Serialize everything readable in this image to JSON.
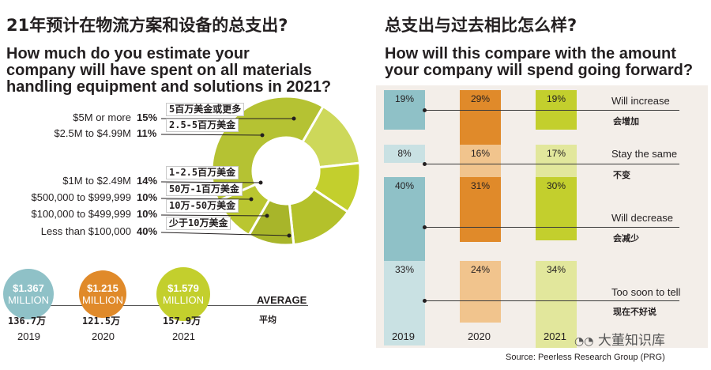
{
  "left": {
    "title_cn": "21年预计在物流方案和设备的总支出?",
    "title_en_1": "How much do you estimate your",
    "title_en_2": "company will have spent on all materials",
    "title_en_3": "handling equipment and solutions in 2021?",
    "legend": [
      {
        "label": "$5M or more",
        "pct": "15%",
        "cn": "5百万美金或更多"
      },
      {
        "label": "$2.5M to $4.99M",
        "pct": "11%",
        "cn": "2.5-5百万美金"
      },
      {
        "label": "$1M to $2.49M",
        "pct": "14%",
        "cn": "1-2.5百万美金"
      },
      {
        "label": "$500,000 to $999,999",
        "pct": "10%",
        "cn": "50万-1百万美金"
      },
      {
        "label": "$100,000 to $499,999",
        "pct": "10%",
        "cn": "10万-50万美金"
      },
      {
        "label": "Less than $100,000",
        "pct": "40%",
        "cn": "少于10万美金"
      }
    ],
    "averages": [
      {
        "value": "$1.367",
        "unit": "MILLION",
        "cn": "136.7万",
        "year": "2019",
        "color": "#8fc1c7"
      },
      {
        "value": "$1.215",
        "unit": "MILLION",
        "cn": "121.5万",
        "year": "2020",
        "color": "#e08a2a"
      },
      {
        "value": "$1.579",
        "unit": "MILLION",
        "cn": "157.9万",
        "year": "2021",
        "color": "#c3cf2d"
      }
    ],
    "average_label": "AVERAGE",
    "average_cn": "平均"
  },
  "right": {
    "title_cn": "总支出与过去相比怎么样?",
    "title_en_1": "How will this compare with the amount",
    "title_en_2": "your company will spend going forward?",
    "years": [
      "2019",
      "2020",
      "2021"
    ],
    "options": [
      {
        "en": "Will increase",
        "cn": "会增加"
      },
      {
        "en": "Stay the same",
        "cn": "不变"
      },
      {
        "en": "Will decrease",
        "cn": "会减少"
      },
      {
        "en": "Too soon to tell",
        "cn": "现在不好说"
      }
    ],
    "source": "Source: Peerless Research Group (PRG)",
    "watermark": "大董知识库"
  },
  "chart_data": [
    {
      "type": "pie",
      "title": "How much do you estimate your company will have spent on all materials handling equipment and solutions in 2021?",
      "categories": [
        "$5M or more",
        "$2.5M to $4.99M",
        "$1M to $2.49M",
        "$500,000 to $999,999",
        "$100,000 to $499,999",
        "Less than $100,000"
      ],
      "values": [
        15,
        11,
        14,
        10,
        10,
        40
      ],
      "colors": [
        "#cdd85a",
        "#c3cf2d",
        "#b4c12b",
        "#a8b52a",
        "#bac630",
        "#b5c233"
      ]
    },
    {
      "type": "bar",
      "title": "Average spend",
      "categories": [
        "2019",
        "2020",
        "2021"
      ],
      "values": [
        1.367,
        1.215,
        1.579
      ],
      "ylabel": "MILLION"
    },
    {
      "type": "bar",
      "title": "How will this compare with the amount your company will spend going forward?",
      "categories": [
        "Will increase",
        "Stay the same",
        "Will decrease",
        "Too soon to tell"
      ],
      "series": [
        {
          "name": "2019",
          "values": [
            19,
            8,
            40,
            33
          ],
          "labels": [
            "19%",
            "8%",
            "40%",
            "33%"
          ]
        },
        {
          "name": "2020",
          "values": [
            29,
            16,
            31,
            24
          ],
          "labels": [
            "29%",
            "16%",
            "31%",
            "24%"
          ]
        },
        {
          "name": "2021",
          "values": [
            19,
            17,
            30,
            34
          ],
          "labels": [
            "19%",
            "17%",
            "30%",
            "34%"
          ]
        }
      ]
    }
  ]
}
